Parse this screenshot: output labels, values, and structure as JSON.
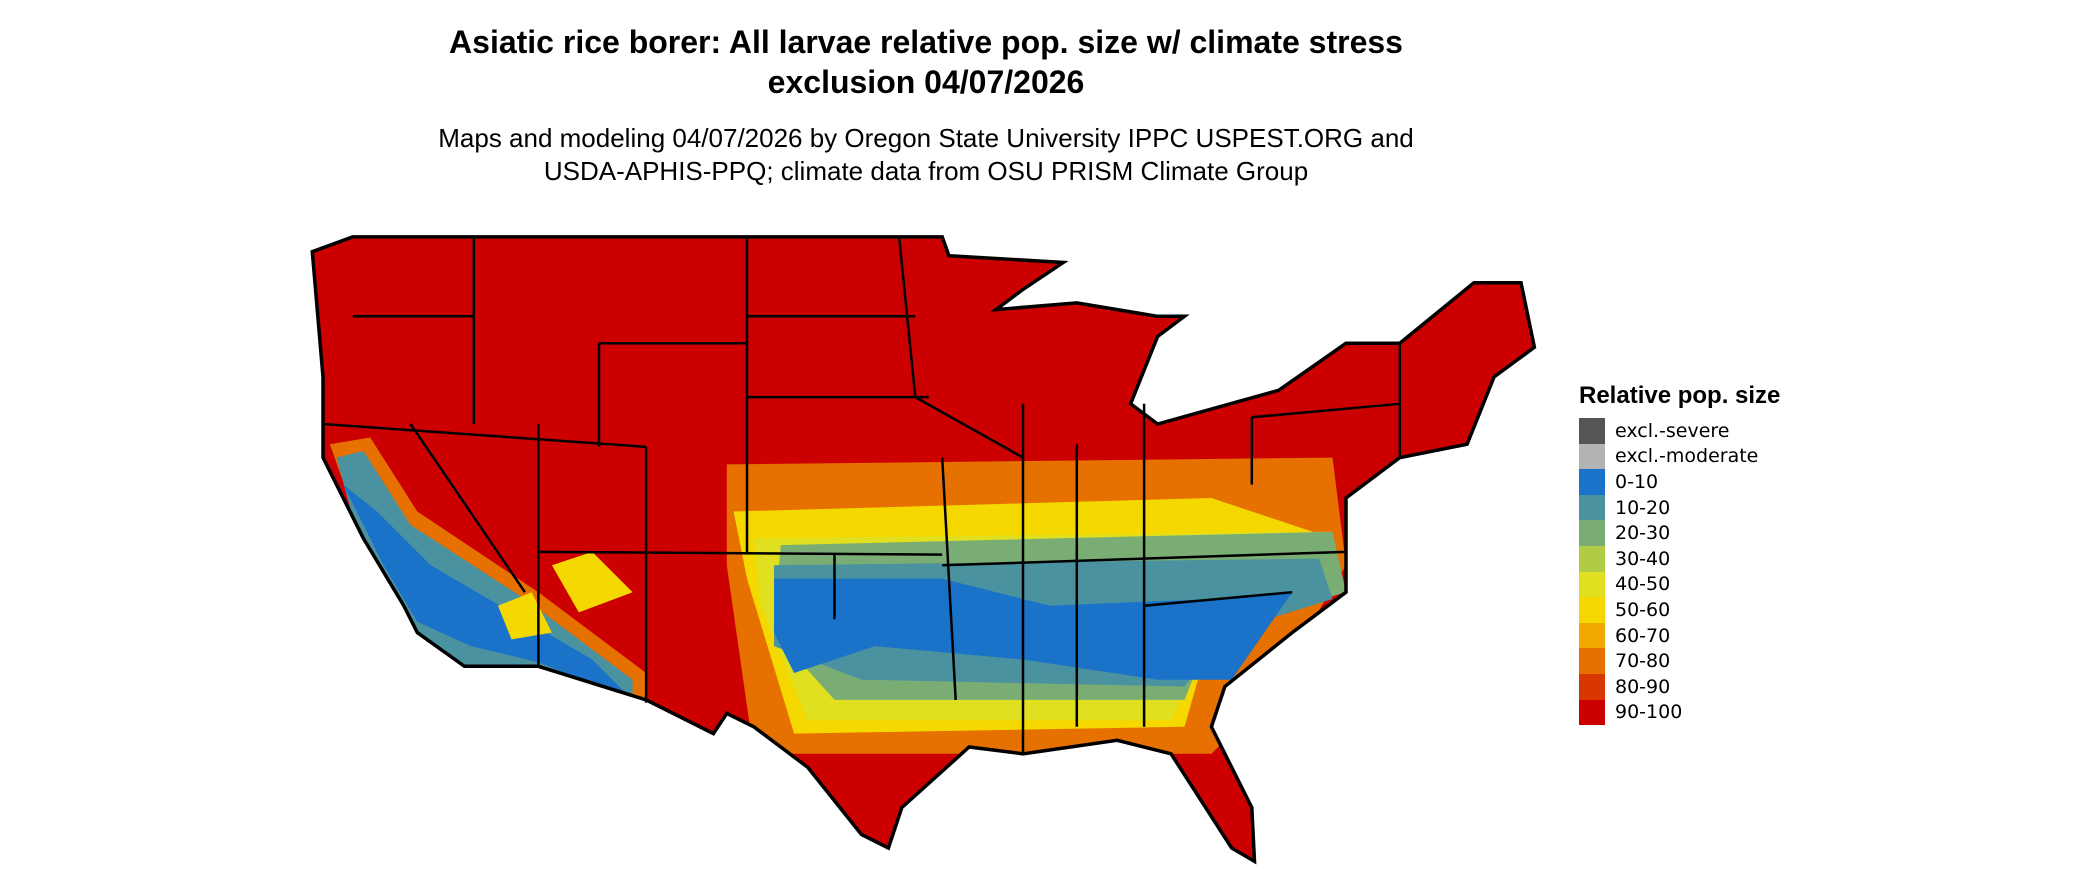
{
  "header": {
    "title": "Asiatic rice borer: All larvae relative pop. size w/ climate stress exclusion 04/07/2026",
    "subtitle": "Maps and modeling 04/07/2026 by Oregon State University IPPC USPEST.ORG and USDA-APHIS-PPQ; climate data from OSU PRISM Climate Group"
  },
  "legend": {
    "title": "Relative pop. size",
    "items": [
      {
        "label": "excl.-severe",
        "color": "#555555"
      },
      {
        "label": "excl.-moderate",
        "color": "#b3b3b3"
      },
      {
        "label": "0-10",
        "color": "#1a72c9"
      },
      {
        "label": "10-20",
        "color": "#4a92a0"
      },
      {
        "label": "20-30",
        "color": "#7aad74"
      },
      {
        "label": "30-40",
        "color": "#b0cc44"
      },
      {
        "label": "40-50",
        "color": "#e0e020"
      },
      {
        "label": "50-60",
        "color": "#f5d800"
      },
      {
        "label": "60-70",
        "color": "#f0a800"
      },
      {
        "label": "70-80",
        "color": "#e67000"
      },
      {
        "label": "80-90",
        "color": "#d83800"
      },
      {
        "label": "90-100",
        "color": "#cc0000"
      }
    ]
  }
}
